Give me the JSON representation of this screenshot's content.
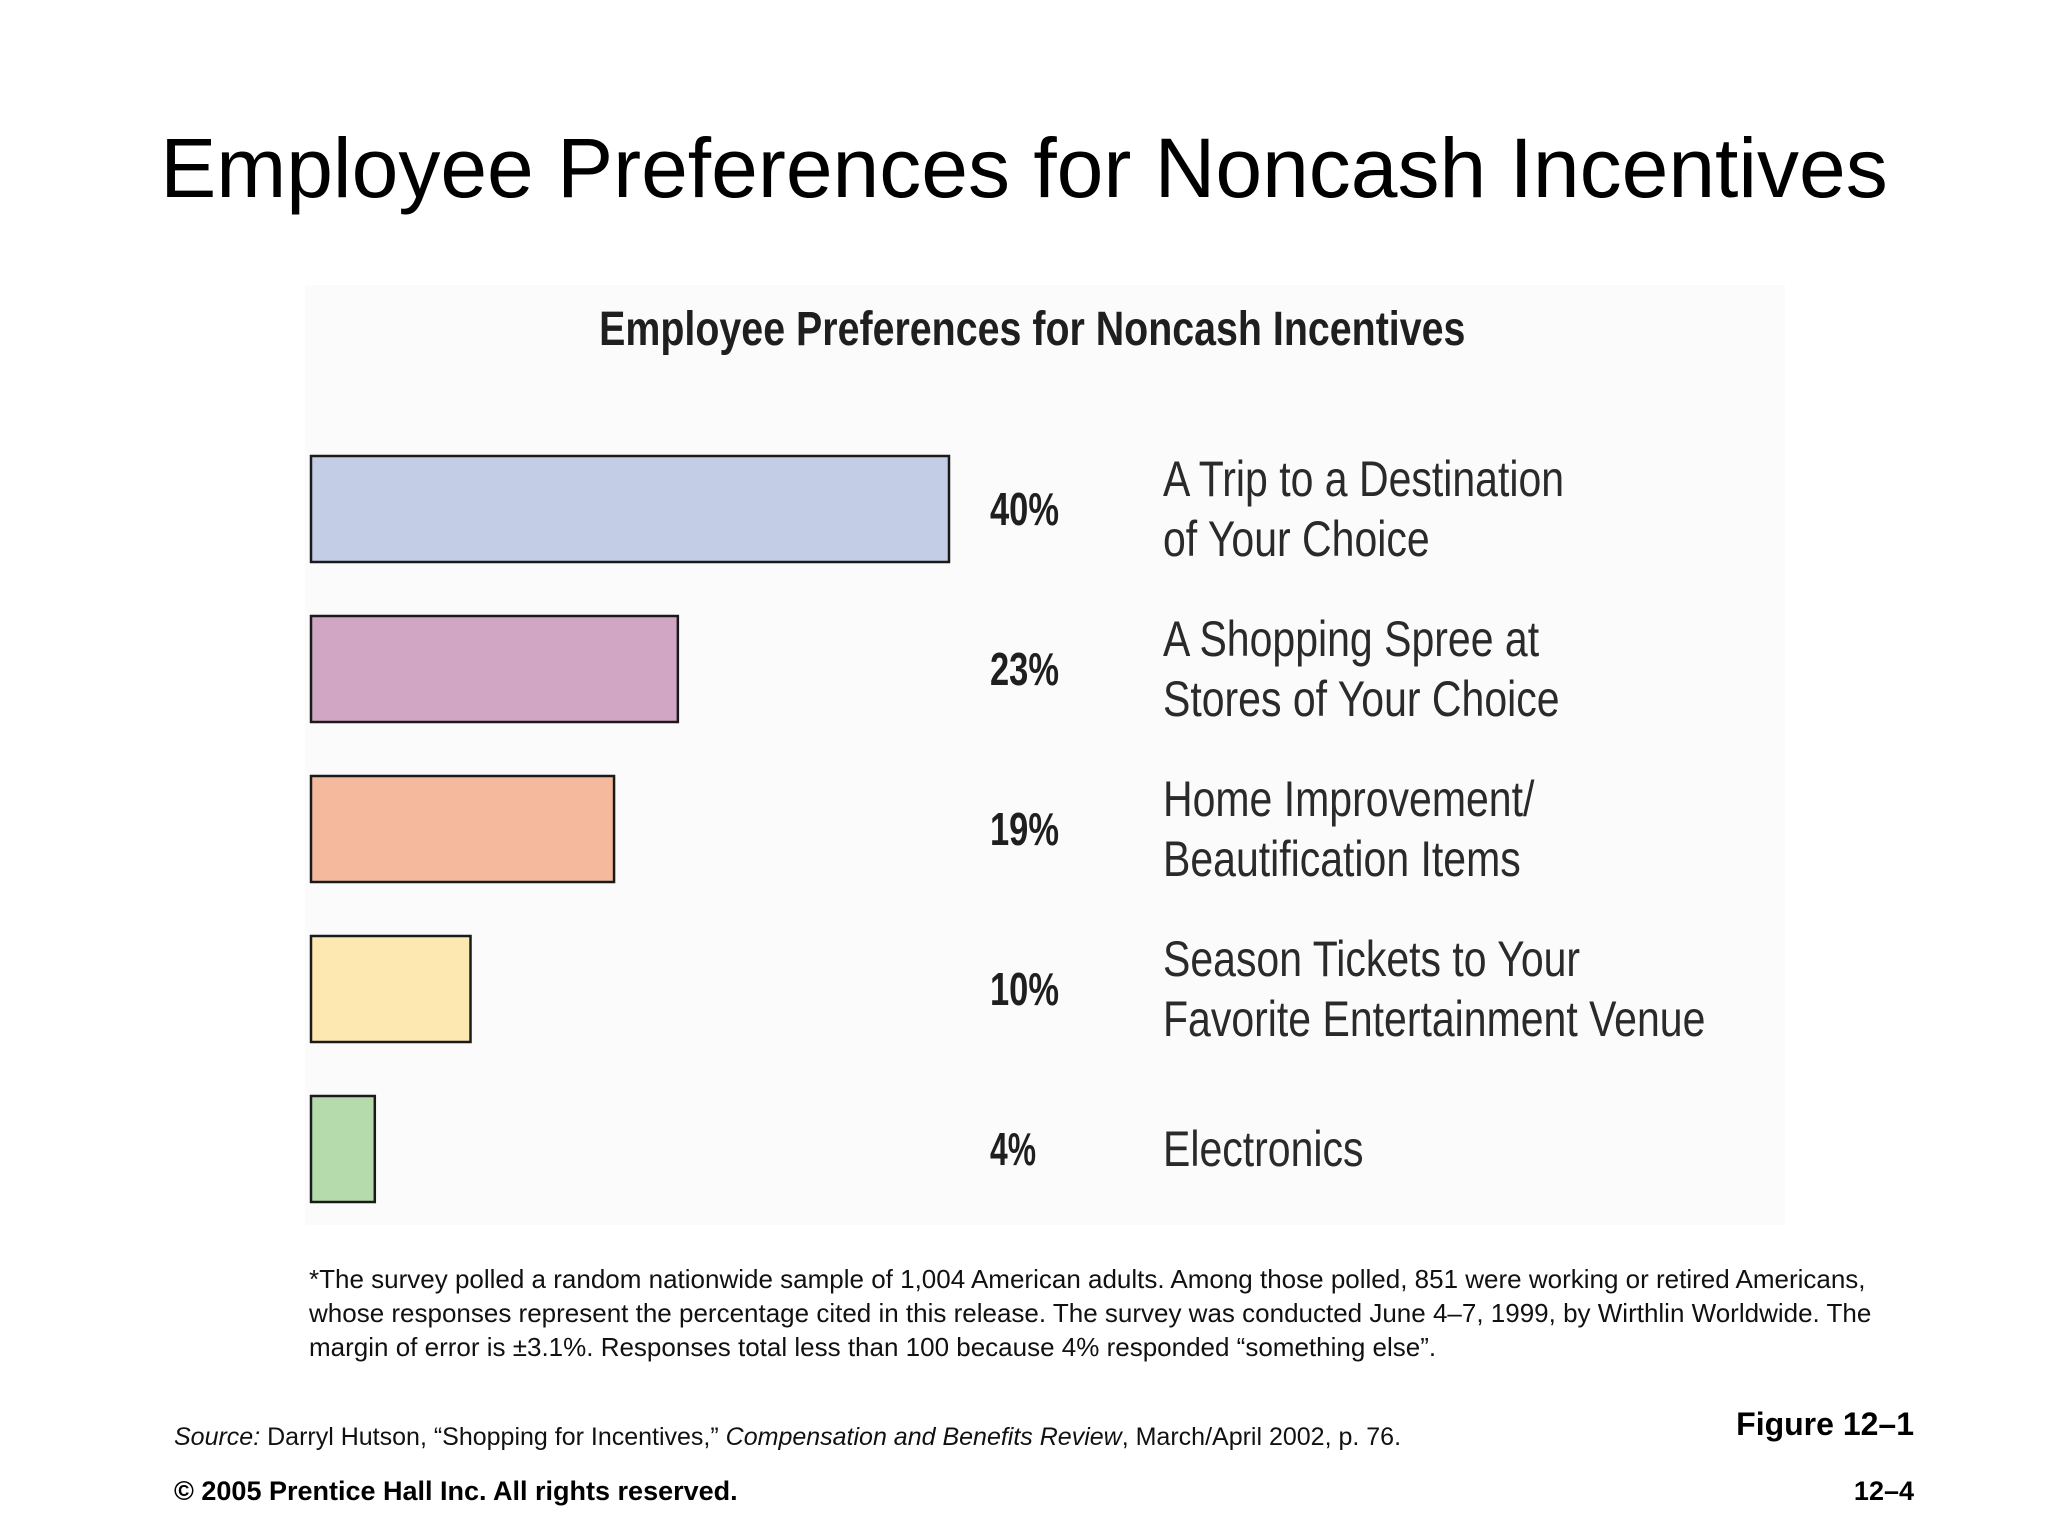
{
  "slide": {
    "title": "Employee Preferences for Noncash Incentives",
    "footnote": "*The survey polled a random nationwide sample of 1,004 American adults. Among those polled, 851 were working or retired Americans, whose responses represent the percentage cited in this release. The survey was conducted June 4–7, 1999, by Wirthlin Worldwide. The margin of error is ±3.1%. Responses total less than 100 because 4% responded “something else”.",
    "source_label": "Source:",
    "source_author": " Darryl Hutson, “Shopping for Incentives,” ",
    "source_journal": "Compensation and Benefits Review",
    "source_rest": ", March/April 2002, p. 76.",
    "figure_label": "Figure 12–1",
    "copyright": "© 2005 Prentice Hall Inc. All rights reserved.",
    "page_number": "12–4"
  },
  "chart_data": {
    "type": "bar",
    "orientation": "horizontal",
    "title": "Employee Preferences for Noncash Incentives",
    "xlim": [
      0,
      40
    ],
    "grid": false,
    "legend": "none",
    "categories": [
      [
        "A Trip to a Destination",
        "of Your Choice"
      ],
      [
        "A Shopping Spree at",
        "Stores of Your Choice"
      ],
      [
        "Home Improvement/",
        "Beautification Items"
      ],
      [
        "Season Tickets to Your",
        "Favorite Entertainment Venue"
      ],
      [
        "Electronics"
      ]
    ],
    "values": [
      40,
      23,
      19,
      10,
      4
    ],
    "value_labels": [
      "40%",
      "23%",
      "19%",
      "10%",
      "4%"
    ],
    "colors": [
      "#c3cde6",
      "#d1a6c4",
      "#f5b99d",
      "#fde8b2",
      "#b5dbac"
    ]
  }
}
